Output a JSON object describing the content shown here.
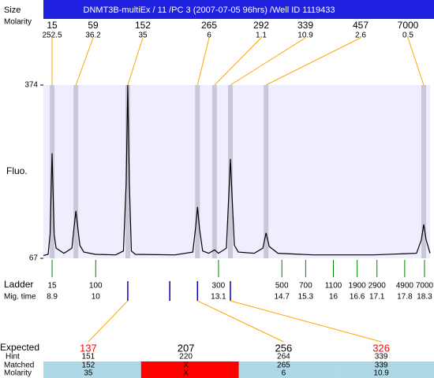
{
  "chart_data": {
    "type": "electropherogram",
    "title": "DNMT3B-multiEx / 11 /PC 3 (2007-07-05 96hrs) /Well ID 1119433",
    "y_label": "Fluo.",
    "ylim": [
      67,
      374
    ],
    "yticks": [
      67,
      374
    ],
    "xlim": [
      8.68,
      18.44
    ],
    "peaks_header": {
      "size": "Size",
      "molarity": "Molarity"
    },
    "peaks": {
      "size": [
        15,
        59,
        152,
        265,
        292,
        339,
        457,
        7000
      ],
      "molarity": [
        252.5,
        36.2,
        35,
        6,
        1.1,
        10.9,
        2.6,
        0.5
      ],
      "time": [
        8.9,
        9.5,
        10.81,
        12.57,
        13.0,
        13.4,
        14.3,
        18.28
      ]
    },
    "ladder_header": {
      "size": "Ladder",
      "time": "Mig. time"
    },
    "ladder": {
      "size": [
        15,
        100,
        300,
        500,
        700,
        1100,
        1900,
        2900,
        4900,
        7000
      ],
      "time": [
        8.9,
        10,
        13.1,
        14.7,
        15.3,
        16,
        16.6,
        17.1,
        17.8,
        18.3
      ]
    },
    "expected_header": {
      "expected": "Expected",
      "hint": "Hint",
      "matched": "Matched",
      "molarity": "Molarity"
    },
    "expected": {
      "expected": [
        137,
        207,
        256,
        326
      ],
      "color": [
        "#ff0000",
        "#000000",
        "#000000",
        "#ff0000"
      ],
      "hint": [
        151,
        220,
        264,
        339
      ],
      "matched": [
        152,
        "X",
        265,
        339
      ],
      "molarity": [
        35,
        "X",
        6,
        10.9
      ],
      "row_color": [
        "#add8e6",
        "#ff0000",
        "#add8e6",
        "#add8e6"
      ],
      "time": [
        10.81,
        11.87,
        12.57,
        13.4
      ]
    },
    "trace": {
      "color": "#000000",
      "x": [
        8.68,
        8.8,
        8.85,
        8.88,
        8.9,
        8.92,
        8.95,
        9.0,
        9.2,
        9.4,
        9.45,
        9.5,
        9.55,
        9.6,
        9.7,
        10.0,
        10.5,
        10.7,
        10.77,
        10.81,
        10.85,
        10.9,
        11.0,
        12.0,
        12.45,
        12.52,
        12.57,
        12.62,
        12.7,
        12.85,
        13.0,
        13.1,
        13.3,
        13.36,
        13.4,
        13.44,
        13.5,
        13.6,
        14.0,
        14.22,
        14.3,
        14.38,
        14.6,
        15.5,
        17.0,
        18.1,
        18.22,
        18.28,
        18.34,
        18.44
      ],
      "y": [
        72,
        74,
        110,
        200,
        253,
        200,
        110,
        85,
        76,
        85,
        120,
        151,
        120,
        90,
        78,
        74,
        73,
        80,
        200,
        374,
        200,
        80,
        74,
        73,
        78,
        120,
        158,
        120,
        80,
        76,
        82,
        76,
        85,
        180,
        243,
        180,
        90,
        78,
        76,
        85,
        112,
        88,
        76,
        73,
        73,
        76,
        100,
        127,
        100,
        76
      ]
    },
    "colors": {
      "header": "#2020e0",
      "plot": "#eeeeff",
      "band": "#c8c8d8",
      "connector": "#ffa500",
      "ladder_tick": "#008000",
      "expected_tick": "#0000c0"
    }
  }
}
